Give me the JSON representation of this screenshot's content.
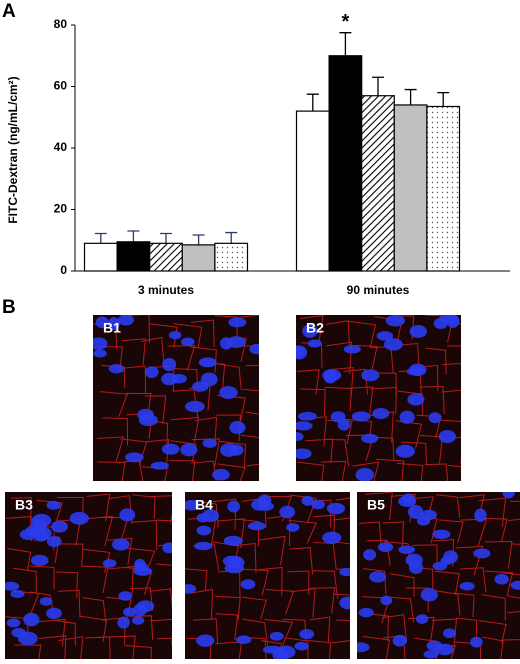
{
  "panel_labels": [
    "A",
    "B"
  ],
  "chart_data": {
    "type": "bar",
    "ylabel": "FITC-Dextran (ng/mL/cm²)",
    "categories": [
      "3 minutes",
      "90 minutes"
    ],
    "ylim": [
      0,
      80
    ],
    "yticks": [
      0,
      20,
      40,
      60,
      80
    ],
    "series": [
      {
        "color": "#ffffff",
        "values": [
          9,
          52
        ],
        "errors": [
          3.2,
          5.5
        ]
      },
      {
        "color": "#000000",
        "values": [
          9.5,
          70
        ],
        "errors": [
          3.5,
          7.5
        ],
        "markers": [
          null,
          "*"
        ]
      },
      {
        "color": "#ffffff",
        "pattern": "hatch",
        "values": [
          9,
          57
        ],
        "errors": [
          3.2,
          6
        ]
      },
      {
        "color": "#c0c0c0",
        "values": [
          8.5,
          54
        ],
        "errors": [
          3.2,
          5
        ]
      },
      {
        "color": "#ffffff",
        "pattern": "dots",
        "values": [
          9,
          53.5
        ],
        "errors": [
          3.5,
          4.5
        ]
      }
    ]
  },
  "images": [
    {
      "label": "B1"
    },
    {
      "label": "B2"
    },
    {
      "label": "B3"
    },
    {
      "label": "B4"
    },
    {
      "label": "B5"
    }
  ]
}
